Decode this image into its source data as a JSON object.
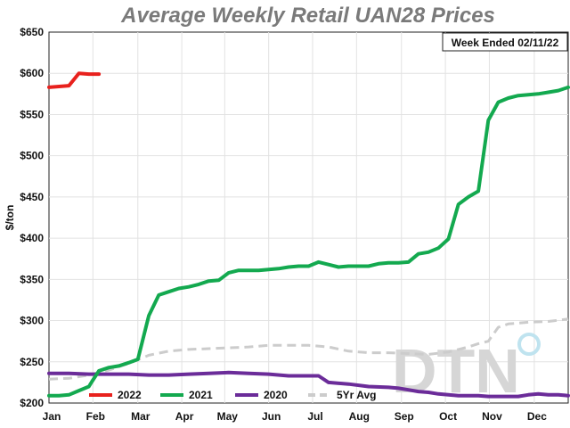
{
  "chart_data": {
    "type": "line",
    "title": "Average Weekly Retail UAN28 Prices",
    "ylabel": "$/ton",
    "xlabel": "",
    "note": "Week Ended 02/11/22",
    "logo": "DTN",
    "ylim": [
      200,
      650
    ],
    "xlim": [
      0,
      52
    ],
    "yticks": [
      200,
      250,
      300,
      350,
      400,
      450,
      500,
      550,
      600,
      650
    ],
    "ytick_labels": [
      "$200",
      "$250",
      "$300",
      "$350",
      "$400",
      "$450",
      "$500",
      "$550",
      "$600",
      "$650"
    ],
    "months": [
      "Jan",
      "Feb",
      "Mar",
      "Apr",
      "May",
      "Jun",
      "Jul",
      "Aug",
      "Sep",
      "Oct",
      "Nov",
      "Dec"
    ],
    "month_weeks": [
      0,
      4.4,
      8.9,
      13.3,
      17.6,
      22,
      26.4,
      30.8,
      35.3,
      39.7,
      44.1,
      48.6
    ],
    "grid": true,
    "legend_position": "bottom",
    "series": [
      {
        "name": "2022",
        "color": "#e8211d",
        "dashed": false,
        "x": [
          0,
          1,
          2,
          3,
          4,
          5
        ],
        "y": [
          583,
          584,
          585,
          600,
          599,
          599
        ]
      },
      {
        "name": "2021",
        "color": "#13a94f",
        "dashed": false,
        "x": [
          0,
          1,
          2,
          3,
          4,
          4.3,
          5,
          6,
          7,
          8,
          8.9,
          10,
          11,
          12,
          13,
          14,
          15,
          16,
          17,
          18,
          19,
          20,
          21,
          22,
          23,
          24,
          25,
          26,
          27,
          28,
          29,
          30,
          31,
          32,
          33,
          34,
          35,
          36,
          37,
          38,
          39,
          40,
          41,
          42,
          43,
          44,
          45,
          46,
          47,
          48,
          49,
          50,
          51,
          52
        ],
        "y": [
          209,
          209,
          210,
          215,
          220,
          226,
          239,
          243,
          245,
          249,
          253,
          306,
          331,
          335,
          339,
          341,
          344,
          348,
          349,
          358,
          361,
          361,
          361,
          362,
          363,
          365,
          366,
          366,
          371,
          368,
          365,
          366,
          366,
          366,
          369,
          370,
          370,
          371,
          381,
          383,
          388,
          399,
          441,
          450,
          457,
          543,
          565,
          570,
          573,
          574,
          575,
          577,
          579,
          583
        ]
      },
      {
        "name": "2020",
        "color": "#6b2c99",
        "dashed": false,
        "x": [
          0,
          2,
          4,
          6,
          8,
          10,
          12,
          14,
          16,
          18,
          20,
          22,
          24,
          26,
          27,
          28,
          30,
          32,
          34,
          35,
          36,
          37,
          38,
          39,
          40,
          41,
          42,
          43,
          44,
          45,
          46,
          47,
          48,
          49,
          50,
          51,
          52
        ],
        "y": [
          236,
          236,
          235,
          235,
          235,
          234,
          234,
          235,
          236,
          237,
          236,
          235,
          233,
          233,
          233,
          225,
          223,
          220,
          219,
          218,
          216,
          214,
          213,
          211,
          210,
          209,
          209,
          209,
          208,
          208,
          208,
          208,
          210,
          211,
          210,
          210,
          209
        ]
      },
      {
        "name": "5Yr Avg",
        "color": "#cccccc",
        "dashed": true,
        "x": [
          0,
          2,
          4,
          6,
          8,
          10,
          12,
          14,
          16,
          18,
          20,
          22,
          24,
          26,
          28,
          30,
          32,
          34,
          36,
          38,
          40,
          42,
          43,
          44,
          45,
          46,
          48,
          50,
          52
        ],
        "y": [
          229,
          230,
          234,
          240,
          248,
          258,
          263,
          265,
          266,
          267,
          268,
          270,
          270,
          270,
          268,
          263,
          261,
          261,
          260,
          259,
          262,
          268,
          272,
          275,
          292,
          296,
          298,
          299,
          302
        ]
      }
    ]
  }
}
